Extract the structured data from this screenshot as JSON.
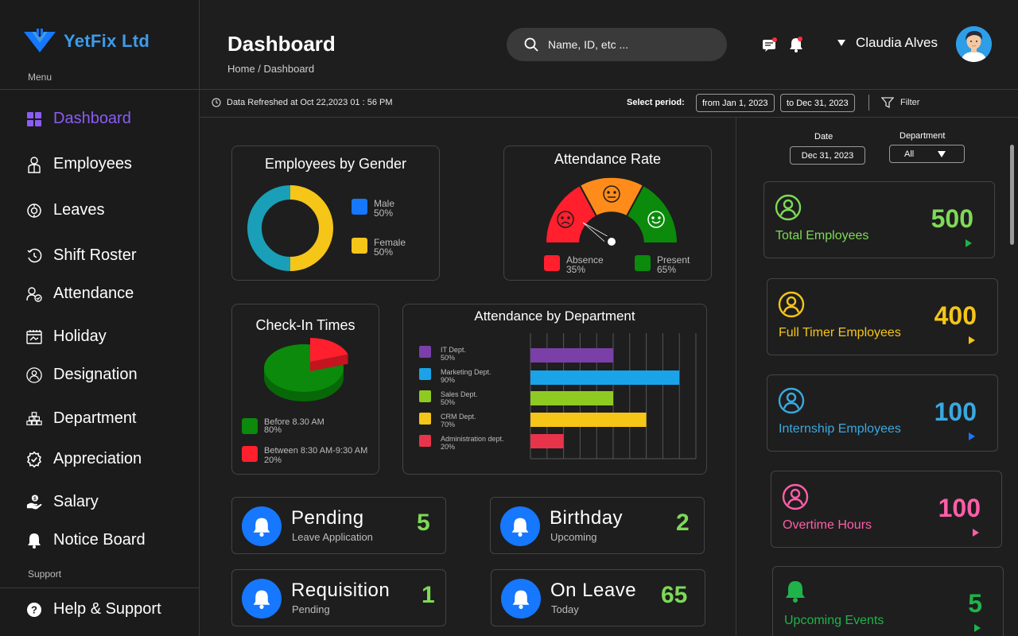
{
  "brand": {
    "name": "YetFix Ltd"
  },
  "sidebar": {
    "menu_label": "Menu",
    "support_label": "Support",
    "items": [
      {
        "label": "Dashboard",
        "icon": "dashboard-icon",
        "active": true
      },
      {
        "label": "Employees",
        "icon": "employee-icon"
      },
      {
        "label": "Leaves",
        "icon": "leaves-icon"
      },
      {
        "label": "Shift Roster",
        "icon": "shift-roster-icon"
      },
      {
        "label": "Attendance",
        "icon": "attendance-icon"
      },
      {
        "label": "Holiday",
        "icon": "holiday-icon"
      },
      {
        "label": "Designation",
        "icon": "designation-icon"
      },
      {
        "label": "Department",
        "icon": "department-icon"
      },
      {
        "label": "Appreciation",
        "icon": "appreciation-icon"
      },
      {
        "label": "Salary",
        "icon": "salary-icon"
      },
      {
        "label": "Notice Board",
        "icon": "bell-icon"
      }
    ],
    "support_items": [
      {
        "label": "Help & Support",
        "icon": "help-icon"
      }
    ]
  },
  "header": {
    "title": "Dashboard",
    "breadcrumb": "Home / Dashboard",
    "search_placeholder": "Name, ID, etc ...",
    "user_name": "Claudia Alves"
  },
  "toolbar": {
    "refresh_text": "Data Refreshed at Oct 22,2023 01 : 56 PM",
    "period_label": "Select period:",
    "from_date": "from Jan 1, 2023",
    "to_date": "to Dec 31, 2023",
    "filter_label": "Filter"
  },
  "gender_card": {
    "title": "Employees by Gender",
    "legend": [
      {
        "name": "Male",
        "pct": "50%",
        "color": "#1677ff"
      },
      {
        "name": "Female",
        "pct": "50%",
        "color": "#f5c518"
      }
    ]
  },
  "attendance_rate": {
    "title": "Attendance Rate",
    "legend": [
      {
        "name": "Absence",
        "pct": "35%",
        "color": "#ff1f2d"
      },
      {
        "name": "Present",
        "pct": "65%",
        "color": "#0b8a0b"
      }
    ]
  },
  "checkin_card": {
    "title": "Check-In Times",
    "legend": [
      {
        "name": "Before 8.30 AM",
        "pct": "80%",
        "color": "#0b8a0b"
      },
      {
        "name": "Between 8:30 AM-9:30 AM",
        "pct": "20%",
        "color": "#ff1f2d"
      }
    ]
  },
  "dept_card": {
    "title": "Attendance by Department"
  },
  "chart_data": [
    {
      "type": "pie",
      "labels": [
        "Male",
        "Female"
      ],
      "values": [
        50,
        50
      ],
      "title": "Employees by Gender"
    },
    {
      "type": "pie",
      "labels": [
        "Absence",
        "Present"
      ],
      "values": [
        35,
        65
      ],
      "title": "Attendance Rate"
    },
    {
      "type": "pie",
      "labels": [
        "Before 8.30 AM",
        "Between 8:30 AM-9:30 AM"
      ],
      "values": [
        80,
        20
      ],
      "title": "Check-In Times"
    },
    {
      "type": "bar",
      "title": "Attendance by Department",
      "categories": [
        "IT Dept.",
        "Marketing Dept.",
        "Sales Dept.",
        "CRM Dept.",
        "Administration dept."
      ],
      "pct_labels": [
        "50%",
        "90%",
        "50%",
        "70%",
        "20%"
      ],
      "values": [
        50,
        90,
        50,
        70,
        20
      ],
      "colors": [
        "#7b3fa8",
        "#1aa3e8",
        "#8fca23",
        "#f5c518",
        "#e8344a"
      ],
      "xlim": [
        0,
        100
      ],
      "grid": true
    }
  ],
  "stats": [
    {
      "title": "Pending",
      "sub": "Leave Application",
      "value": "5"
    },
    {
      "title": "Birthday",
      "sub": "Upcoming",
      "value": "2"
    },
    {
      "title": "Requisition",
      "sub": "Pending",
      "value": "1"
    },
    {
      "title": "On Leave",
      "sub": "Today",
      "value": "65"
    }
  ],
  "right_panel": {
    "date_label": "Date",
    "date_value": "Dec 31, 2023",
    "dept_label": "Department",
    "dept_value": "All",
    "kpis": [
      {
        "label": "Total Employees",
        "value": "500",
        "color": "#7ed957",
        "arrow_color": "#1fb34a"
      },
      {
        "label": "Full Timer Employees",
        "value": "400",
        "color": "#f5c518",
        "arrow_color": "#f5c518"
      },
      {
        "label": "Internship Employees",
        "value": "100",
        "color": "#3aa8e0",
        "arrow_color": "#1677ff"
      },
      {
        "label": "Overtime Hours",
        "value": "100",
        "color": "#ff5ea8",
        "arrow_color": "#ff5ea8"
      },
      {
        "label": "Upcoming Events",
        "value": "5",
        "color": "#1fb34a",
        "arrow_color": "#1fb34a"
      }
    ]
  }
}
